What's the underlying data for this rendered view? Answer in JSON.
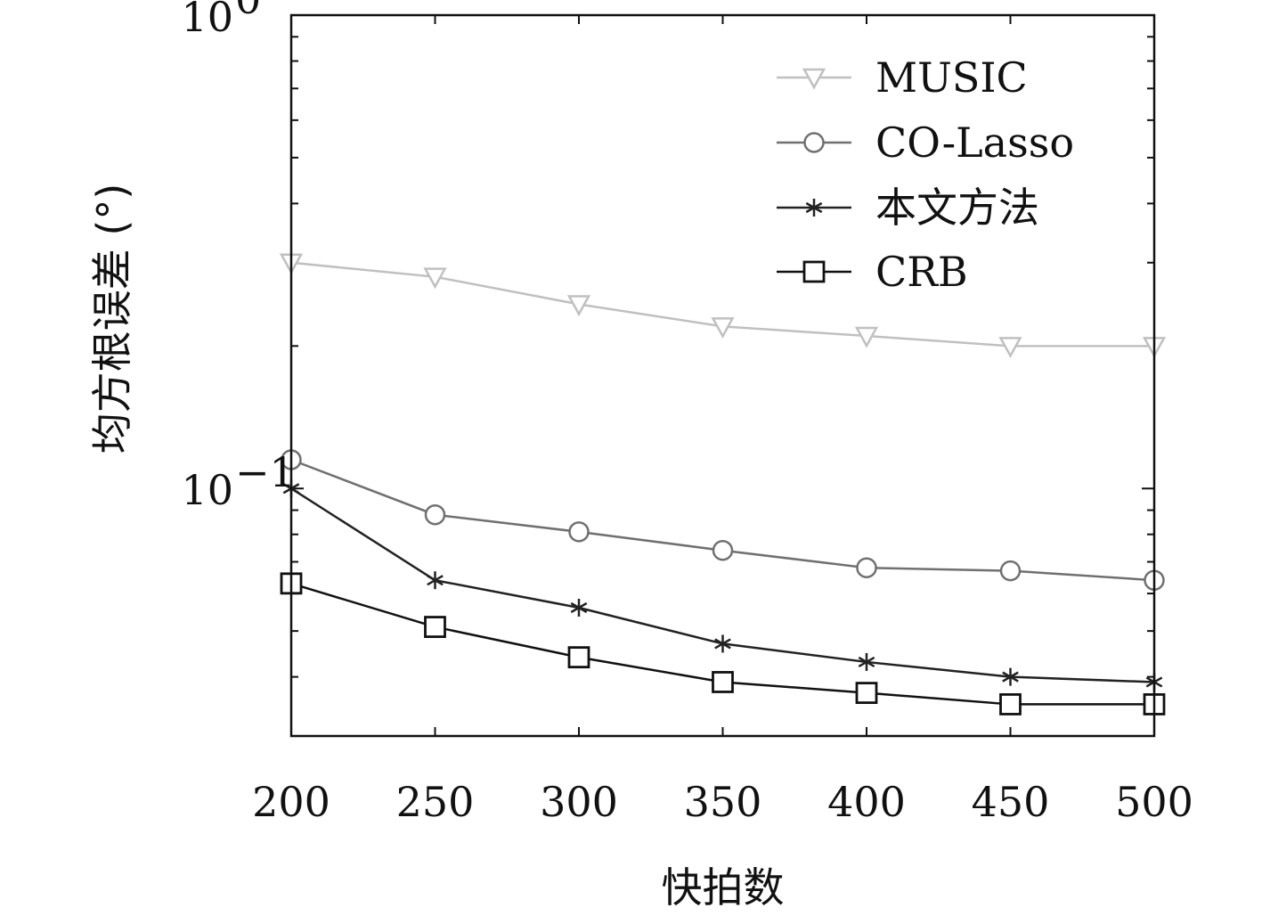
{
  "chart_data": {
    "type": "line",
    "title": "",
    "xlabel": "快拍数",
    "ylabel": "均方根误差 (°)",
    "yscale": "log",
    "x": [
      200,
      250,
      300,
      350,
      400,
      450,
      500
    ],
    "xlim": [
      200,
      500
    ],
    "ylim": [
      0.03,
      1
    ],
    "xticks": [
      "200",
      "250",
      "300",
      "350",
      "400",
      "450",
      "500"
    ],
    "yticks": [
      {
        "value": 1,
        "base": "10",
        "exp": "0"
      },
      {
        "value": 0.1,
        "base": "10",
        "exp": "−1"
      }
    ],
    "grid": false,
    "legend_position": "top-right",
    "series": [
      {
        "name": "MUSIC",
        "values": [
          0.3,
          0.28,
          0.245,
          0.22,
          0.21,
          0.2,
          0.2
        ],
        "color": "#c0c0c0",
        "marker": "triangle-down"
      },
      {
        "name": "CO-Lasso",
        "values": [
          0.115,
          0.088,
          0.081,
          0.074,
          0.068,
          0.067,
          0.064
        ],
        "color": "#707070",
        "marker": "circle"
      },
      {
        "name": "本文方法",
        "values": [
          0.1,
          0.064,
          0.056,
          0.047,
          0.043,
          0.04,
          0.039
        ],
        "color": "#222222",
        "marker": "star"
      },
      {
        "name": "CRB",
        "values": [
          0.063,
          0.051,
          0.044,
          0.039,
          0.037,
          0.035,
          0.035
        ],
        "color": "#111111",
        "marker": "square"
      }
    ]
  }
}
